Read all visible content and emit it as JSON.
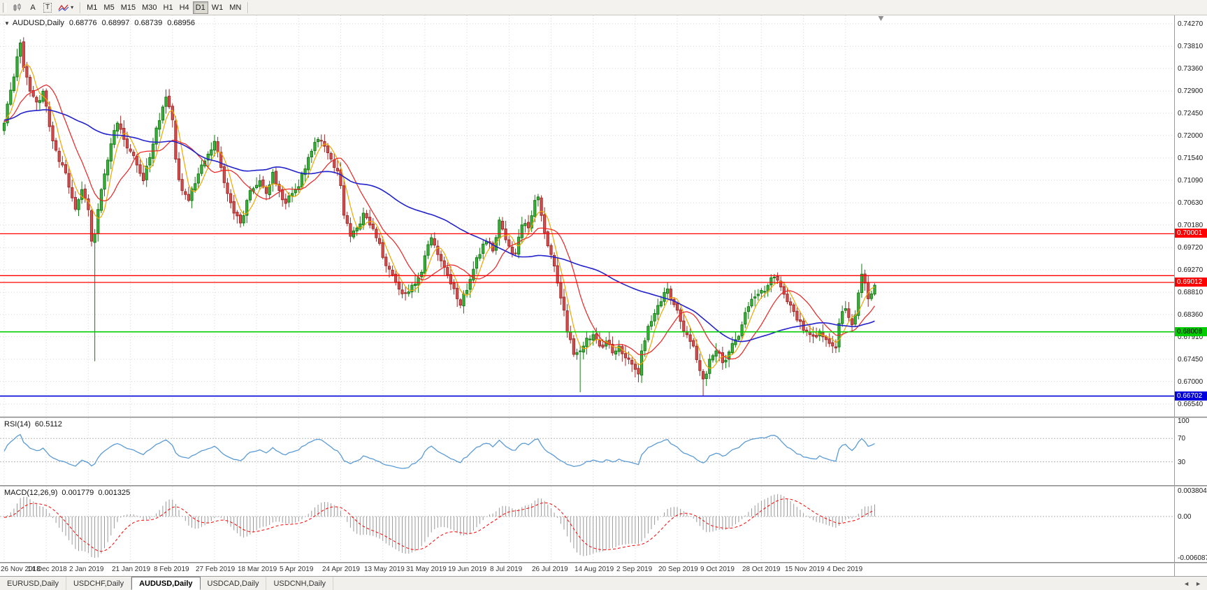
{
  "toolbar": {
    "tools": [
      {
        "id": "chart-window-tool",
        "glyph": "candles"
      },
      {
        "id": "cursor-tool",
        "label": "A"
      },
      {
        "id": "text-label-tool",
        "label": "T"
      },
      {
        "id": "indicators-tool",
        "glyph": "zigzag"
      }
    ],
    "timeframes": [
      {
        "label": "M1",
        "active": false
      },
      {
        "label": "M5",
        "active": false
      },
      {
        "label": "M15",
        "active": false
      },
      {
        "label": "M30",
        "active": false
      },
      {
        "label": "H1",
        "active": false
      },
      {
        "label": "H4",
        "active": false
      },
      {
        "label": "D1",
        "active": true
      },
      {
        "label": "W1",
        "active": false
      },
      {
        "label": "MN",
        "active": false
      }
    ]
  },
  "quote": {
    "collapse_glyph": "▼",
    "symbol": "AUDUSD,Daily",
    "open": "0.68776",
    "high": "0.68997",
    "low": "0.68739",
    "close": "0.68956"
  },
  "price_axis_ticks": [
    "0.74270",
    "0.73810",
    "0.73360",
    "0.72900",
    "0.72450",
    "0.72000",
    "0.71540",
    "0.71090",
    "0.70630",
    "0.70180",
    "0.69720",
    "0.69270",
    "0.68810",
    "0.68360",
    "0.67910",
    "0.67450",
    "0.67000",
    "0.66540"
  ],
  "hlines": [
    {
      "price": 0.70001,
      "color": "#ff0000",
      "label": "0.70001",
      "text": "#ffffff",
      "width": 1.3
    },
    {
      "price": 0.6915,
      "color": "#ff0000",
      "width": 1.3
    },
    {
      "price": 0.69012,
      "color": "#ff0000",
      "label": "0.69012",
      "text": "#ffffff",
      "width": 1.3
    },
    {
      "price": 0.68008,
      "color": "#00cc00",
      "label": "0.68008",
      "text": "#000000",
      "width": 1.6
    },
    {
      "price": 0.66702,
      "color": "#0000dd",
      "label": "0.66702",
      "text": "#ffffff",
      "width": 1.6
    }
  ],
  "dates": [
    "26 Nov 2018",
    "14 Dec 2018",
    "2 Jan 2019",
    "21 Jan 2019",
    "8 Feb 2019",
    "27 Feb 2019",
    "18 Mar 2019",
    "5 Apr 2019",
    "24 Apr 2019",
    "13 May 2019",
    "31 May 2019",
    "19 Jun 2019",
    "8 Jul 2019",
    "26 Jul 2019",
    "14 Aug 2019",
    "2 Sep 2019",
    "20 Sep 2019",
    "9 Oct 2019",
    "28 Oct 2019",
    "15 Nov 2019",
    "4 Dec 2019"
  ],
  "rsi": {
    "name": "RSI(14)",
    "value": "60.5112",
    "axis": [
      "100",
      "70",
      "30"
    ],
    "levels": [
      70,
      30
    ]
  },
  "macd": {
    "name": "MACD(12,26,9)",
    "value_main": "0.001779",
    "value_signal": "0.001325",
    "axis_max": "0.003804",
    "axis_zero": "0.00",
    "axis_min": "-0.006087"
  },
  "tabs": [
    {
      "label": "EURUSD,Daily",
      "active": false
    },
    {
      "label": "USDCHF,Daily",
      "active": false
    },
    {
      "label": "AUDUSD,Daily",
      "active": true
    },
    {
      "label": "USDCAD,Daily",
      "active": false
    },
    {
      "label": "USDCNH,Daily",
      "active": false
    }
  ],
  "tabs_nav": {
    "left": "◄",
    "right": "►"
  },
  "colors": {
    "candle_up_fill": "#3db53d",
    "candle_up_stroke": "#157a15",
    "candle_down_fill": "#d94f4f",
    "candle_down_stroke": "#9e2b2b",
    "ma_fast": "#f0a500",
    "ma_mid": "#ee2222",
    "ma_slow": "#2222cc",
    "rsi_line": "#5b9bd5",
    "rsi_level": "#b8b8b8",
    "macd_hist": "#999999",
    "macd_signal": "#ff0000",
    "grid": "#d7d7d7"
  },
  "chart_data": {
    "type": "candlestick",
    "symbol": "AUDUSD",
    "period": "Daily",
    "bars": 270,
    "visible_price_range": [
      0.6654,
      0.7427
    ],
    "anchors_close": [
      [
        0,
        0.7225
      ],
      [
        2,
        0.7292
      ],
      [
        4,
        0.736
      ],
      [
        5,
        0.7388
      ],
      [
        6,
        0.7338
      ],
      [
        8,
        0.729
      ],
      [
        10,
        0.7268
      ],
      [
        12,
        0.729
      ],
      [
        14,
        0.7218
      ],
      [
        16,
        0.717
      ],
      [
        18,
        0.714
      ],
      [
        20,
        0.7095
      ],
      [
        22,
        0.705
      ],
      [
        24,
        0.709
      ],
      [
        26,
        0.7049
      ],
      [
        27,
        0.6985
      ],
      [
        28,
        0.7
      ],
      [
        30,
        0.709
      ],
      [
        32,
        0.715
      ],
      [
        34,
        0.721
      ],
      [
        35,
        0.7225
      ],
      [
        37,
        0.7192
      ],
      [
        39,
        0.7168
      ],
      [
        41,
        0.714
      ],
      [
        43,
        0.7108
      ],
      [
        45,
        0.7155
      ],
      [
        47,
        0.7215
      ],
      [
        49,
        0.7258
      ],
      [
        50,
        0.7278
      ],
      [
        52,
        0.7232
      ],
      [
        53,
        0.7152
      ],
      [
        54,
        0.711
      ],
      [
        55,
        0.7088
      ],
      [
        57,
        0.7068
      ],
      [
        59,
        0.7102
      ],
      [
        61,
        0.714
      ],
      [
        63,
        0.7162
      ],
      [
        65,
        0.7188
      ],
      [
        67,
        0.7135
      ],
      [
        69,
        0.7082
      ],
      [
        71,
        0.7042
      ],
      [
        73,
        0.7022
      ],
      [
        75,
        0.7068
      ],
      [
        77,
        0.7092
      ],
      [
        79,
        0.7108
      ],
      [
        81,
        0.7082
      ],
      [
        83,
        0.7125
      ],
      [
        85,
        0.7088
      ],
      [
        87,
        0.7062
      ],
      [
        89,
        0.7082
      ],
      [
        91,
        0.7096
      ],
      [
        93,
        0.7132
      ],
      [
        95,
        0.7168
      ],
      [
        97,
        0.7192
      ],
      [
        99,
        0.7178
      ],
      [
        101,
        0.7152
      ],
      [
        103,
        0.7128
      ],
      [
        104,
        0.7098
      ],
      [
        105,
        0.7038
      ],
      [
        107,
        0.6995
      ],
      [
        109,
        0.7012
      ],
      [
        111,
        0.7042
      ],
      [
        113,
        0.7018
      ],
      [
        115,
        0.6992
      ],
      [
        117,
        0.6952
      ],
      [
        119,
        0.6928
      ],
      [
        121,
        0.6902
      ],
      [
        123,
        0.6878
      ],
      [
        125,
        0.6882
      ],
      [
        127,
        0.6898
      ],
      [
        129,
        0.6922
      ],
      [
        131,
        0.6978
      ],
      [
        132,
        0.6992
      ],
      [
        134,
        0.6958
      ],
      [
        136,
        0.6932
      ],
      [
        138,
        0.6898
      ],
      [
        140,
        0.6868
      ],
      [
        141,
        0.6855
      ],
      [
        143,
        0.6885
      ],
      [
        145,
        0.6928
      ],
      [
        147,
        0.6958
      ],
      [
        149,
        0.6985
      ],
      [
        151,
        0.6965
      ],
      [
        153,
        0.7028
      ],
      [
        155,
        0.6988
      ],
      [
        156,
        0.6975
      ],
      [
        158,
        0.696
      ],
      [
        160,
        0.7018
      ],
      [
        162,
        0.7012
      ],
      [
        164,
        0.7068
      ],
      [
        165,
        0.7075
      ],
      [
        167,
        0.7002
      ],
      [
        169,
        0.6958
      ],
      [
        171,
        0.69
      ],
      [
        173,
        0.6845
      ],
      [
        174,
        0.68
      ],
      [
        176,
        0.6755
      ],
      [
        178,
        0.6762
      ],
      [
        180,
        0.6788
      ],
      [
        182,
        0.6795
      ],
      [
        184,
        0.6772
      ],
      [
        186,
        0.6782
      ],
      [
        188,
        0.6758
      ],
      [
        190,
        0.6772
      ],
      [
        192,
        0.6748
      ],
      [
        194,
        0.6735
      ],
      [
        196,
        0.6715
      ],
      [
        197,
        0.6762
      ],
      [
        199,
        0.6812
      ],
      [
        201,
        0.6838
      ],
      [
        203,
        0.6862
      ],
      [
        205,
        0.6888
      ],
      [
        207,
        0.6856
      ],
      [
        209,
        0.6822
      ],
      [
        211,
        0.6795
      ],
      [
        213,
        0.6772
      ],
      [
        215,
        0.6722
      ],
      [
        216,
        0.6705
      ],
      [
        217,
        0.6715
      ],
      [
        218,
        0.6745
      ],
      [
        220,
        0.6762
      ],
      [
        222,
        0.6738
      ],
      [
        224,
        0.676
      ],
      [
        226,
        0.6785
      ],
      [
        228,
        0.6815
      ],
      [
        230,
        0.6852
      ],
      [
        232,
        0.6872
      ],
      [
        234,
        0.6885
      ],
      [
        236,
        0.6895
      ],
      [
        238,
        0.6912
      ],
      [
        240,
        0.6892
      ],
      [
        242,
        0.6862
      ],
      [
        244,
        0.6842
      ],
      [
        246,
        0.6822
      ],
      [
        248,
        0.6802
      ],
      [
        250,
        0.6792
      ],
      [
        252,
        0.6802
      ],
      [
        254,
        0.6785
      ],
      [
        256,
        0.6772
      ],
      [
        257,
        0.6768
      ],
      [
        258,
        0.6818
      ],
      [
        259,
        0.6842
      ],
      [
        260,
        0.6848
      ],
      [
        261,
        0.683
      ],
      [
        262,
        0.6815
      ],
      [
        263,
        0.6835
      ],
      [
        264,
        0.688
      ],
      [
        265,
        0.6918
      ],
      [
        266,
        0.69
      ],
      [
        267,
        0.6868
      ],
      [
        268,
        0.6878
      ],
      [
        269,
        0.68956
      ]
    ],
    "special_bars": {
      "5": {
        "high": 0.7394
      },
      "28": {
        "low": 0.6741
      },
      "178": {
        "low": 0.6678
      },
      "216": {
        "low": 0.667
      },
      "265": {
        "high": 0.6939
      }
    },
    "last_bar": {
      "open": 0.68776,
      "high": 0.68997,
      "low": 0.68739,
      "close": 0.68956
    },
    "moving_averages": [
      {
        "period": 5,
        "color_key": "ma_fast"
      },
      {
        "period": 13,
        "color_key": "ma_mid"
      },
      {
        "period": 55,
        "color_key": "ma_slow"
      }
    ],
    "indicators": [
      {
        "name": "RSI",
        "period": 14,
        "value": 60.5112
      },
      {
        "name": "MACD",
        "fast": 12,
        "slow": 26,
        "signal": 9,
        "main": 0.001779,
        "signal_value": 0.001325
      }
    ],
    "horizontal_levels": [
      0.70001,
      0.6915,
      0.69012,
      0.68008,
      0.66702
    ]
  }
}
